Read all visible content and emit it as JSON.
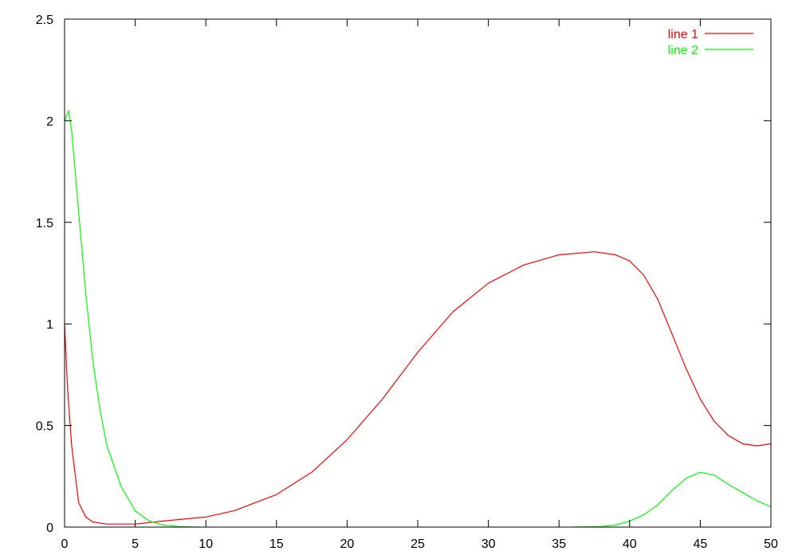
{
  "chart_data": {
    "type": "line",
    "title": "",
    "xlabel": "",
    "ylabel": "",
    "xlim": [
      0,
      50
    ],
    "ylim": [
      0,
      2.5
    ],
    "xticks": [
      0,
      5,
      10,
      15,
      20,
      25,
      30,
      35,
      40,
      45,
      50
    ],
    "yticks": [
      0,
      0.5,
      1,
      1.5,
      2,
      2.5
    ],
    "xtick_labels": [
      "0",
      "5",
      "10",
      "15",
      "20",
      "25",
      "30",
      "35",
      "40",
      "45",
      "50"
    ],
    "ytick_labels": [
      "0",
      "0.5",
      "1",
      "1.5",
      "2",
      "2.5"
    ],
    "grid": false,
    "legend_position": "top-right",
    "series": [
      {
        "name": "line 1",
        "color": "#ff0000",
        "x": [
          0,
          0.2,
          0.5,
          1,
          1.5,
          2,
          3,
          5,
          7,
          10,
          12,
          15,
          17.5,
          20,
          22.5,
          25,
          27.5,
          30,
          32.5,
          35,
          37.5,
          39,
          40,
          41,
          42,
          43,
          44,
          45,
          46,
          47,
          48,
          49,
          50
        ],
        "y": [
          1.0,
          0.7,
          0.4,
          0.12,
          0.05,
          0.025,
          0.015,
          0.015,
          0.03,
          0.05,
          0.08,
          0.16,
          0.27,
          0.43,
          0.63,
          0.86,
          1.06,
          1.2,
          1.29,
          1.34,
          1.355,
          1.34,
          1.31,
          1.24,
          1.12,
          0.95,
          0.78,
          0.63,
          0.52,
          0.45,
          0.41,
          0.4,
          0.41
        ]
      },
      {
        "name": "line 2",
        "color": "#00ff00",
        "x": [
          0,
          0.3,
          0.5,
          1,
          1.5,
          2,
          2.5,
          3,
          4,
          5,
          6,
          7,
          8,
          9.5,
          null,
          36,
          38,
          39,
          40,
          41,
          42,
          43,
          44,
          45,
          46,
          47,
          48,
          49,
          50
        ],
        "y": [
          2.0,
          2.05,
          1.95,
          1.55,
          1.15,
          0.82,
          0.58,
          0.4,
          0.2,
          0.08,
          0.03,
          0.01,
          0.003,
          0,
          null,
          0,
          0.003,
          0.01,
          0.03,
          0.06,
          0.11,
          0.18,
          0.24,
          0.27,
          0.255,
          0.21,
          0.17,
          0.13,
          0.1
        ]
      }
    ]
  }
}
